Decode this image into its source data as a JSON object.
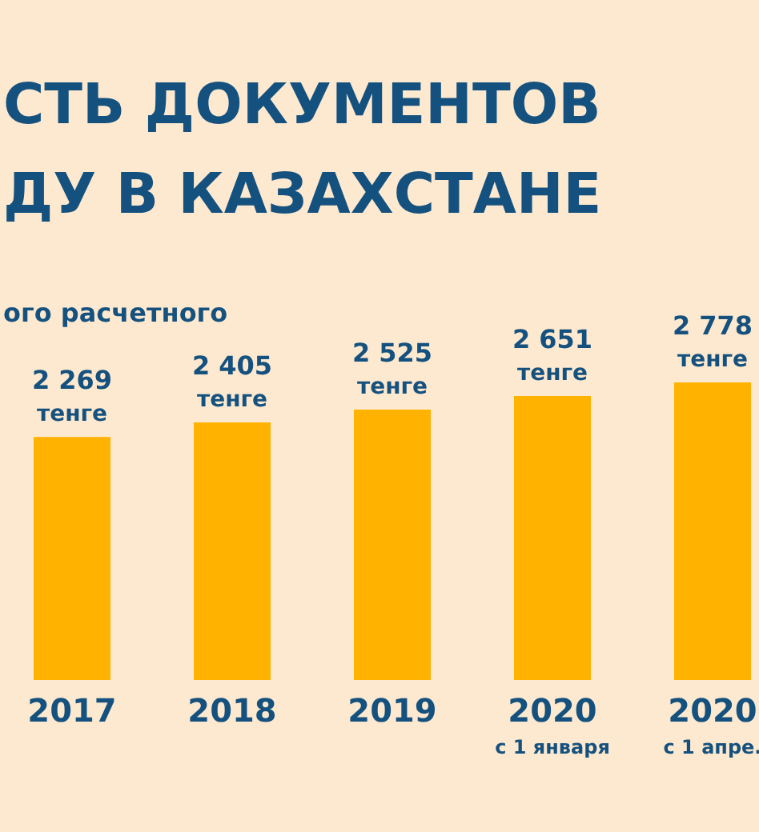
{
  "chart_data": {
    "type": "bar",
    "title": "СТЬ ДОКУМЕНТОВ\nДУ В КАЗАХСТАНЕ",
    "subtitle": "ого расчетного",
    "categories": [
      "2017",
      "2018",
      "2019",
      "2020\nс 1 января",
      "2020\nс 1 апре."
    ],
    "values": [
      2269,
      2405,
      2525,
      2651,
      2778
    ],
    "value_labels": [
      "2 269\nтенге",
      "2 405\nтенге",
      "2 525\nтенге",
      "2 651\nтенге",
      "2 778\nтенге"
    ],
    "color": "#ffb300",
    "tick_labels": "x"
  }
}
